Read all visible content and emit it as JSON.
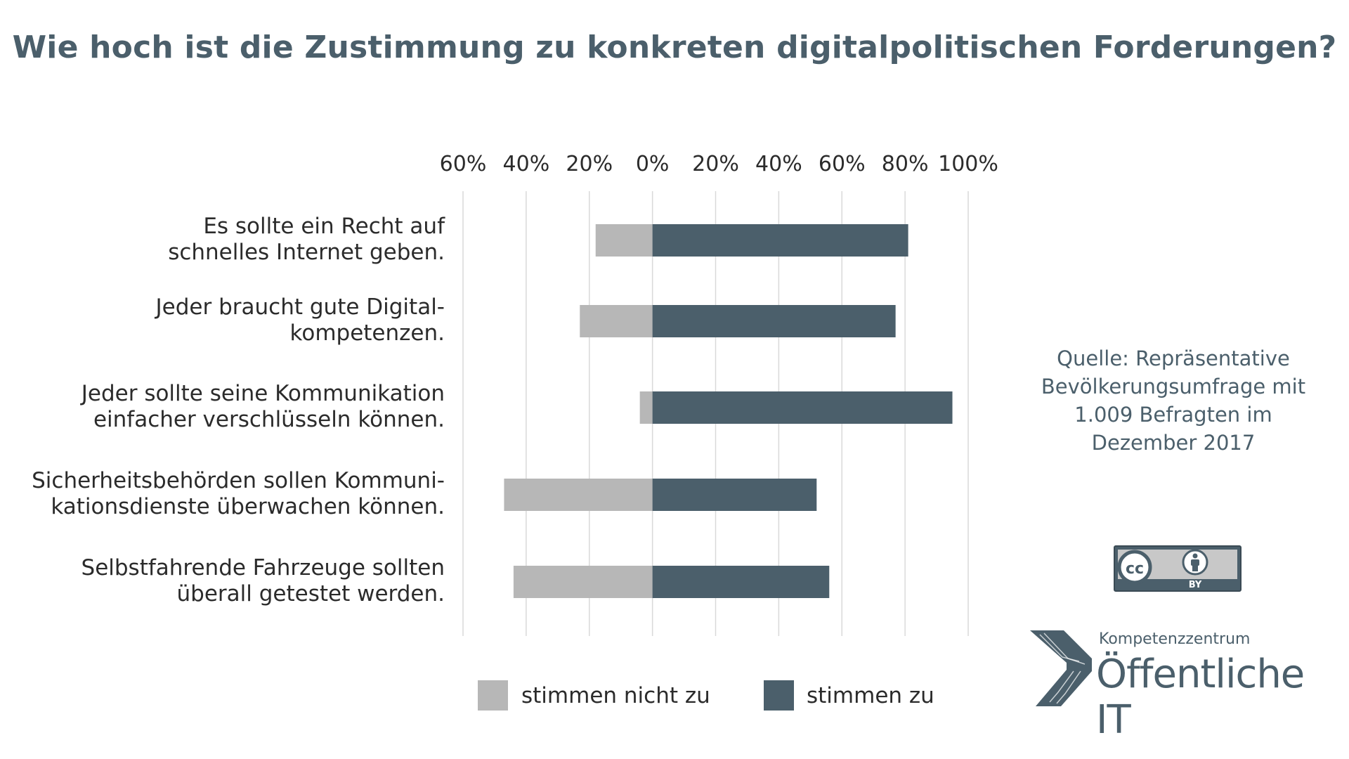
{
  "title": "Wie hoch ist die Zustimmung zu konkreten digitalpolitischen Forderungen?",
  "source_lines": [
    "Quelle: Repräsentative",
    "Bevölkerungsumfrage mit",
    "1.009 Befragten im",
    "Dezember 2017"
  ],
  "license_badge": {
    "cc": "cc",
    "by": "BY"
  },
  "logo": {
    "small": "Kompetenzzentrum",
    "big": "Öffentliche IT"
  },
  "colors": {
    "title": "#4b5f6b",
    "agree": "#4b5f6b",
    "disagree": "#b7b7b7",
    "grid": "#d9d9d9"
  },
  "chart_data": {
    "type": "bar",
    "orientation": "horizontal-diverging",
    "categories": [
      [
        "Es sollte ein Recht auf",
        "schnelles Internet geben."
      ],
      [
        "Jeder braucht gute Digital-",
        "kompetenzen."
      ],
      [
        "Jeder sollte seine Kommunikation",
        "einfacher verschlüsseln können."
      ],
      [
        "Sicherheitsbehörden sollen Kommuni-",
        "kationsdienste überwachen können."
      ],
      [
        "Selbstfahrende Fahrzeuge sollten",
        "überall getestet werden."
      ]
    ],
    "series": [
      {
        "name": "stimmen nicht zu",
        "values": [
          18,
          23,
          4,
          47,
          44
        ],
        "color": "#b7b7b7",
        "direction": "negative"
      },
      {
        "name": "stimmen zu",
        "values": [
          81,
          77,
          95,
          52,
          56
        ],
        "color": "#4b5f6b",
        "direction": "positive"
      }
    ],
    "xlim": [
      -60,
      100
    ],
    "ticks": [
      -60,
      -40,
      -20,
      0,
      20,
      40,
      60,
      80,
      100
    ],
    "tick_labels": [
      "60%",
      "40%",
      "20%",
      "0%",
      "20%",
      "40%",
      "60%",
      "80%",
      "100%"
    ],
    "grid": true,
    "legend_position": "bottom"
  }
}
